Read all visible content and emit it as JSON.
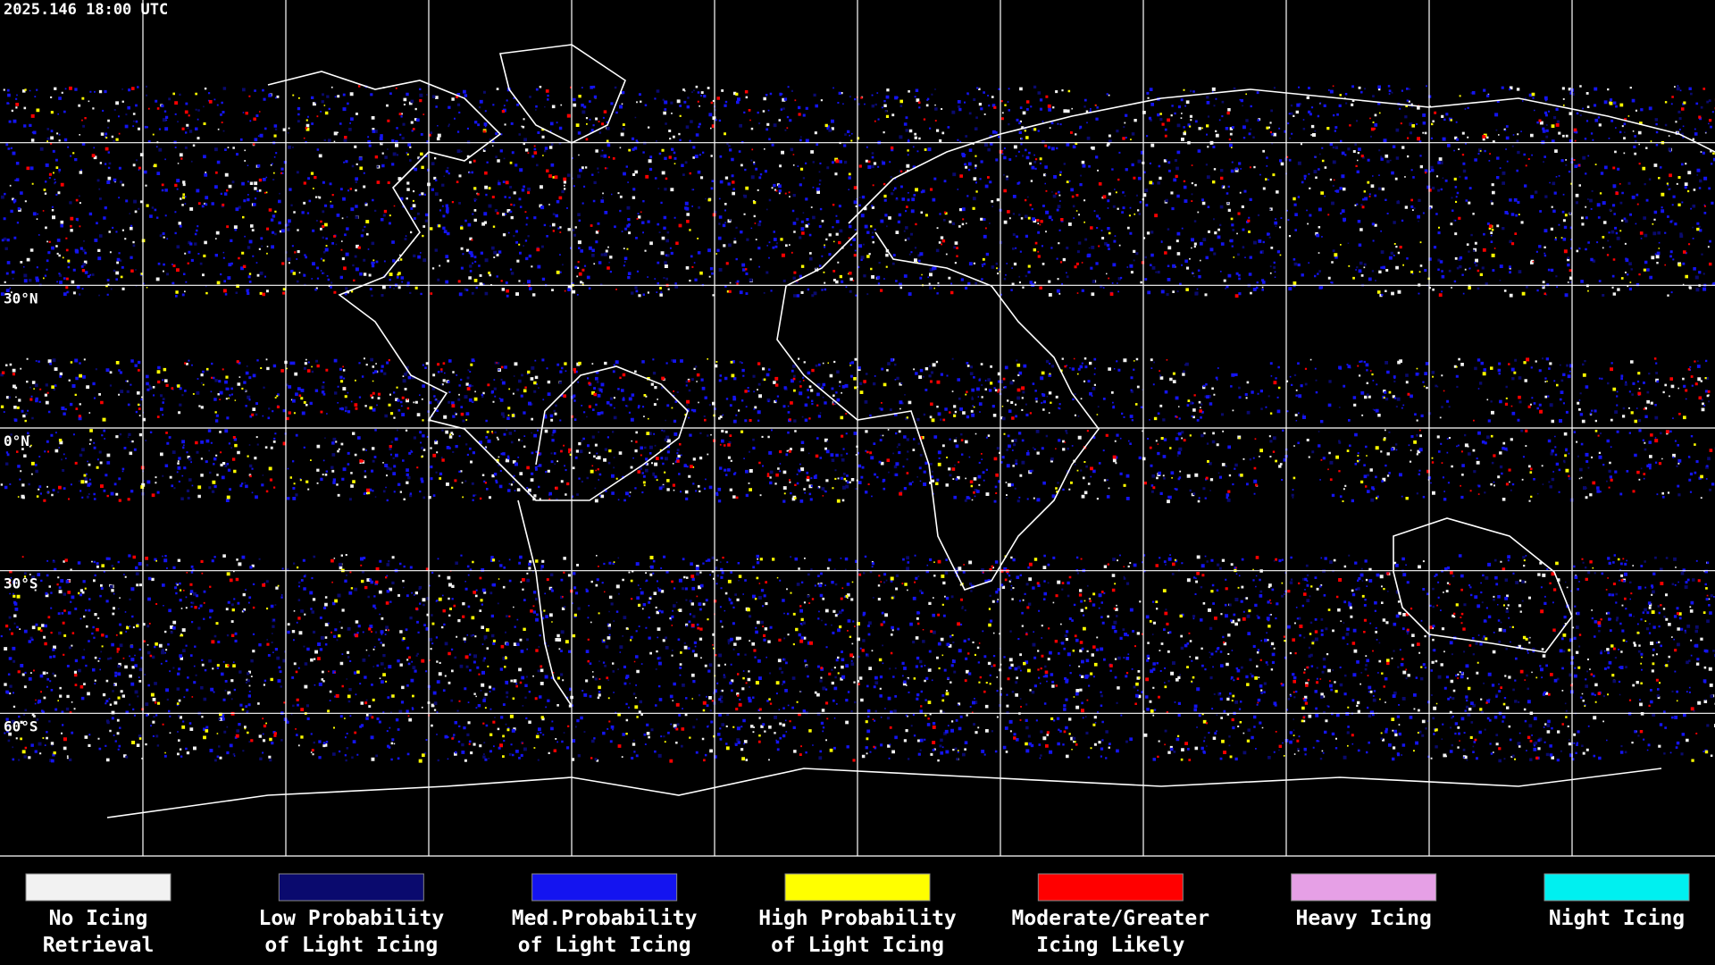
{
  "timestamp": "2025.146 18:00 UTC",
  "lat_labels": [
    {
      "value": 30,
      "label": "30°N"
    },
    {
      "value": 0,
      "label": "0°N"
    },
    {
      "value": -30,
      "label": "30°S"
    },
    {
      "value": -60,
      "label": "60°S"
    }
  ],
  "legend": [
    {
      "lines": [
        "No Icing",
        "Retrieval"
      ],
      "color": "#f2f2f2"
    },
    {
      "lines": [
        "Low Probability",
        "of Light Icing"
      ],
      "color": "#0a0a6e"
    },
    {
      "lines": [
        "Med.Probability",
        "of Light Icing"
      ],
      "color": "#1414f0"
    },
    {
      "lines": [
        "High Probability",
        "of Light Icing"
      ],
      "color": "#ffff00"
    },
    {
      "lines": [
        "Moderate/Greater",
        "Icing Likely"
      ],
      "color": "#ff0000"
    },
    {
      "lines": [
        "Heavy Icing"
      ],
      "color": "#e6a0e6"
    },
    {
      "lines": [
        "Night Icing"
      ],
      "color": "#00f0f0"
    }
  ]
}
